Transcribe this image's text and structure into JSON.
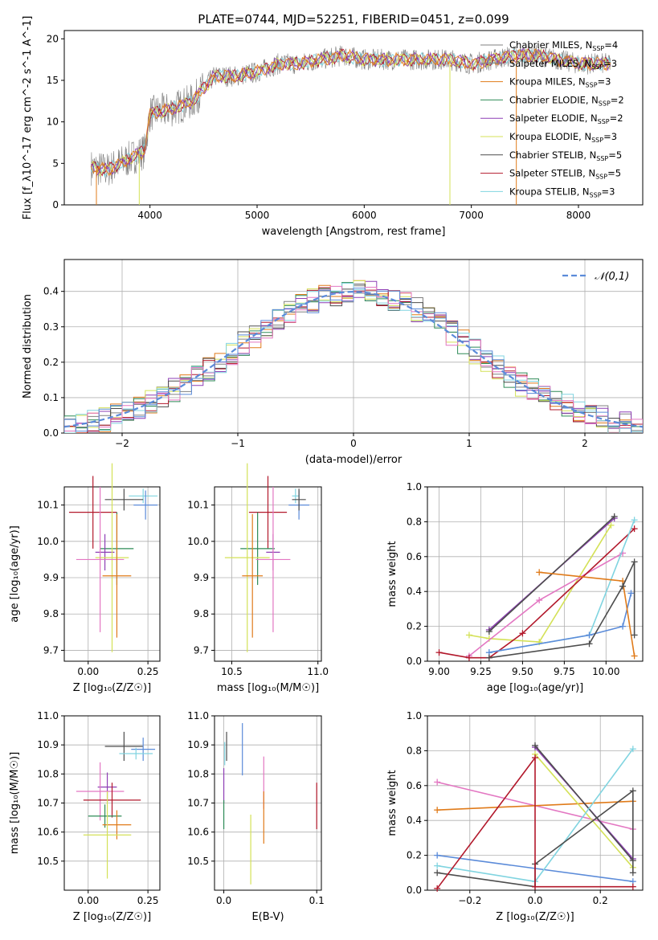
{
  "figure_title": "PLATE=0744, MJD=52251, FIBERID=0451, z=0.099",
  "models": [
    {
      "key": "chabrier_miles",
      "name": "Chabrier MILES",
      "nssp": "4",
      "color": "#808080"
    },
    {
      "key": "salpeter_miles",
      "name": "Salpeter MILES",
      "nssp": "3",
      "color": "#808080"
    },
    {
      "key": "kroupa_miles",
      "name": "Kroupa MILES",
      "nssp": "3",
      "color": "#e07b1a"
    },
    {
      "key": "chabrier_elodie",
      "name": "Chabrier ELODIE",
      "nssp": "2",
      "color": "#2e8b57"
    },
    {
      "key": "salpeter_elodie",
      "name": "Salpeter ELODIE",
      "nssp": "2",
      "color": "#8e3fb5"
    },
    {
      "key": "kroupa_elodie",
      "name": "Kroupa ELODIE",
      "nssp": "3",
      "color": "#d4e157"
    },
    {
      "key": "chabrier_stelib",
      "name": "Chabrier STELIB",
      "nssp": "5",
      "color": "#4d4d4d"
    },
    {
      "key": "salpeter_stelib",
      "name": "Salpeter STELIB",
      "nssp": "5",
      "color": "#b2182b"
    },
    {
      "key": "kroupa_stelib",
      "name": "Kroupa STELIB",
      "nssp": "3",
      "color": "#80d4e0"
    }
  ],
  "extra_colors": {
    "pink": "#e377c2",
    "blue": "#5b8bd9"
  },
  "chart_data": [
    {
      "id": "spectrum",
      "type": "line",
      "xlabel": "wavelength [Angstrom, rest frame]",
      "ylabel": "Flux [f_λ10^-17 erg cm^-2 s^-1 A^-1]",
      "xlim": [
        3200,
        8600
      ],
      "ylim": [
        0,
        21
      ],
      "xticks": [
        "4000",
        "5000",
        "6000",
        "7000",
        "8000"
      ],
      "yticks": [
        "0",
        "5",
        "10",
        "15",
        "20"
      ],
      "x_range": [
        3450,
        8300
      ],
      "continuum": [
        [
          3450,
          4.5
        ],
        [
          3600,
          4.2
        ],
        [
          3800,
          5.5
        ],
        [
          3950,
          6.5
        ],
        [
          4000,
          11
        ],
        [
          4200,
          11.5
        ],
        [
          4400,
          12.5
        ],
        [
          4600,
          15.5
        ],
        [
          4800,
          15.5
        ],
        [
          5000,
          16
        ],
        [
          5200,
          17
        ],
        [
          5400,
          17
        ],
        [
          5600,
          17.5
        ],
        [
          5800,
          18
        ],
        [
          6000,
          17.5
        ],
        [
          6200,
          17.5
        ],
        [
          6400,
          17.5
        ],
        [
          6600,
          17.5
        ],
        [
          6800,
          17.5
        ],
        [
          7000,
          17
        ],
        [
          7200,
          17.5
        ],
        [
          7400,
          18
        ],
        [
          7600,
          18
        ],
        [
          7800,
          17.5
        ],
        [
          8000,
          17
        ],
        [
          8300,
          17
        ]
      ],
      "drops": [
        [
          3500,
          0
        ],
        [
          3900,
          0
        ],
        [
          6800,
          0
        ],
        [
          7420,
          0
        ]
      ]
    },
    {
      "id": "residuals",
      "type": "histogram",
      "xlabel": "(data-model)/error",
      "ylabel": "Normed distribution",
      "xlim": [
        -2.5,
        2.5
      ],
      "ylim": [
        0,
        0.49
      ],
      "xticks": [
        "−2",
        "−1",
        "0",
        "1",
        "2"
      ],
      "yticks": [
        "0.0",
        "0.1",
        "0.2",
        "0.3",
        "0.4"
      ],
      "bin_width": 0.1,
      "legend": "𝒩(0,1)"
    },
    {
      "id": "age_vs_Z",
      "type": "scatter_errorbar",
      "xlabel": "Z [log₁₀(Z/Z☉)]",
      "ylabel": "age  [log₁₀(age/yr)]",
      "xlim": [
        -0.1,
        0.3
      ],
      "ylim": [
        9.67,
        10.15
      ],
      "xticks": [
        "0.00",
        "0.25"
      ],
      "yticks": [
        "9.7",
        "9.8",
        "9.9",
        "10.0",
        "10.1"
      ],
      "points": [
        {
          "color": "#80d4e0",
          "x": 0.23,
          "y": 10.125,
          "xerr": 0.06,
          "yerr": 0.02
        },
        {
          "color": "#5b8bd9",
          "x": 0.24,
          "y": 10.1,
          "xerr": 0.05,
          "yerr": 0.04
        },
        {
          "color": "#4d4d4d",
          "x": 0.15,
          "y": 10.115,
          "xerr": 0.08,
          "yerr": 0.03
        },
        {
          "color": "#b2182b",
          "x": 0.02,
          "y": 10.08,
          "xerr": 0.1,
          "yerr": 0.1
        },
        {
          "color": "#2e8b57",
          "x": 0.12,
          "y": 9.98,
          "xerr": 0.07,
          "yerr": 0.1
        },
        {
          "color": "#8e3fb5",
          "x": 0.07,
          "y": 9.97,
          "xerr": 0.04,
          "yerr": 0.05
        },
        {
          "color": "#d4e157",
          "x": 0.1,
          "y": 9.955,
          "xerr": 0.07,
          "yerr": 0.26
        },
        {
          "color": "#e377c2",
          "x": 0.05,
          "y": 9.95,
          "xerr": 0.1,
          "yerr": 0.2
        },
        {
          "color": "#e07b1a",
          "x": 0.12,
          "y": 9.905,
          "xerr": 0.06,
          "yerr": 0.17
        }
      ]
    },
    {
      "id": "age_vs_mass",
      "type": "scatter_errorbar",
      "xlabel": "mass [log₁₀(M/M☉)]",
      "ylabel": "",
      "xlim": [
        10.4,
        11.02
      ],
      "ylim": [
        9.67,
        10.15
      ],
      "xticks": [
        "10.5",
        "11.0"
      ],
      "yticks": [
        "9.7",
        "9.8",
        "9.9",
        "10.0",
        "10.1"
      ],
      "points": [
        {
          "color": "#80d4e0",
          "x": 10.87,
          "y": 10.125,
          "xerr": 0.02,
          "yerr": 0.02
        },
        {
          "color": "#5b8bd9",
          "x": 10.89,
          "y": 10.1,
          "xerr": 0.06,
          "yerr": 0.04
        },
        {
          "color": "#4d4d4d",
          "x": 10.89,
          "y": 10.115,
          "xerr": 0.04,
          "yerr": 0.03
        },
        {
          "color": "#b2182b",
          "x": 10.71,
          "y": 10.08,
          "xerr": 0.11,
          "yerr": 0.1
        },
        {
          "color": "#2e8b57",
          "x": 10.65,
          "y": 9.98,
          "xerr": 0.1,
          "yerr": 0.1
        },
        {
          "color": "#8e3fb5",
          "x": 10.74,
          "y": 9.97,
          "xerr": 0.04,
          "yerr": 0.05
        },
        {
          "color": "#d4e157",
          "x": 10.59,
          "y": 9.955,
          "xerr": 0.13,
          "yerr": 0.26
        },
        {
          "color": "#e377c2",
          "x": 10.74,
          "y": 9.95,
          "xerr": 0.1,
          "yerr": 0.2
        },
        {
          "color": "#e07b1a",
          "x": 10.62,
          "y": 9.905,
          "xerr": 0.06,
          "yerr": 0.17
        }
      ]
    },
    {
      "id": "weight_vs_age",
      "type": "line",
      "xlabel": "age  [log₁₀(age/yr)]",
      "ylabel": "mass weight",
      "xlim": [
        8.93,
        10.22
      ],
      "ylim": [
        0,
        1
      ],
      "xticks": [
        "9.00",
        "9.25",
        "9.50",
        "9.75",
        "10.00"
      ],
      "yticks": [
        "0.0",
        "0.2",
        "0.4",
        "0.6",
        "0.8",
        "1.0"
      ],
      "series": [
        {
          "color": "#8e3fb5",
          "x": [
            9.3,
            10.05
          ],
          "y": [
            0.18,
            0.82
          ]
        },
        {
          "color": "#4d4d4d",
          "x": [
            9.3,
            10.05
          ],
          "y": [
            0.17,
            0.83
          ]
        },
        {
          "color": "#d4e157",
          "x": [
            9.18,
            9.3,
            9.6,
            10.03
          ],
          "y": [
            0.15,
            0.13,
            0.11,
            0.78
          ]
        },
        {
          "color": "#e377c2",
          "x": [
            9.18,
            9.6,
            10.1
          ],
          "y": [
            0.03,
            0.35,
            0.62
          ]
        },
        {
          "color": "#b2182b",
          "x": [
            9.0,
            9.18,
            9.3,
            9.5,
            10.17
          ],
          "y": [
            0.05,
            0.02,
            0.02,
            0.16,
            0.76
          ]
        },
        {
          "color": "#80d4e0",
          "x": [
            9.3,
            9.9,
            10.17
          ],
          "y": [
            0.05,
            0.15,
            0.81
          ]
        },
        {
          "color": "#5b8bd9",
          "x": [
            9.3,
            9.9,
            10.1,
            10.15
          ],
          "y": [
            0.05,
            0.15,
            0.2,
            0.39
          ]
        },
        {
          "color": "#e07b1a",
          "x": [
            9.6,
            10.1,
            10.17
          ],
          "y": [
            0.51,
            0.46,
            0.03
          ]
        },
        {
          "color": "#4d4d4d",
          "x": [
            9.3,
            9.9,
            10.1,
            10.17,
            10.17
          ],
          "y": [
            0.02,
            0.1,
            0.43,
            0.57,
            0.15
          ]
        }
      ]
    },
    {
      "id": "mass_vs_Z",
      "type": "scatter_errorbar",
      "xlabel": "Z [log₁₀(Z/Z☉)]",
      "ylabel": "mass [log₁₀(M/M☉)]",
      "xlim": [
        -0.1,
        0.3
      ],
      "ylim": [
        10.4,
        11.0
      ],
      "xticks": [
        "0.00",
        "0.25"
      ],
      "yticks": [
        "10.5",
        "10.6",
        "10.7",
        "10.8",
        "10.9",
        "11.0"
      ],
      "points": [
        {
          "color": "#4d4d4d",
          "x": 0.15,
          "y": 10.895,
          "xerr": 0.08,
          "yerr": 0.05
        },
        {
          "color": "#5b8bd9",
          "x": 0.23,
          "y": 10.885,
          "xerr": 0.05,
          "yerr": 0.04
        },
        {
          "color": "#80d4e0",
          "x": 0.2,
          "y": 10.87,
          "xerr": 0.07,
          "yerr": 0.02
        },
        {
          "color": "#8e3fb5",
          "x": 0.08,
          "y": 10.755,
          "xerr": 0.04,
          "yerr": 0.05
        },
        {
          "color": "#e377c2",
          "x": 0.05,
          "y": 10.74,
          "xerr": 0.1,
          "yerr": 0.1
        },
        {
          "color": "#b2182b",
          "x": 0.1,
          "y": 10.71,
          "xerr": 0.12,
          "yerr": 0.06
        },
        {
          "color": "#2e8b57",
          "x": 0.07,
          "y": 10.655,
          "xerr": 0.07,
          "yerr": 0.04
        },
        {
          "color": "#e07b1a",
          "x": 0.12,
          "y": 10.625,
          "xerr": 0.06,
          "yerr": 0.05
        },
        {
          "color": "#d4e157",
          "x": 0.08,
          "y": 10.59,
          "xerr": 0.1,
          "yerr": 0.15
        }
      ]
    },
    {
      "id": "mass_vs_ebv",
      "type": "scatter_errorbar",
      "xlabel": "E(B-V)",
      "ylabel": "",
      "xlim": [
        -0.01,
        0.105
      ],
      "ylim": [
        10.4,
        11.0
      ],
      "xticks": [
        "0.0",
        "0.1"
      ],
      "yticks": [
        "10.5",
        "10.6",
        "10.7",
        "10.8",
        "10.9",
        "11.0"
      ],
      "points": [
        {
          "color": "#4d4d4d",
          "x": 0.003,
          "y": 10.895,
          "xerr": 0,
          "yerr": 0.05
        },
        {
          "color": "#5b8bd9",
          "x": 0.02,
          "y": 10.885,
          "xerr": 0,
          "yerr": 0.09
        },
        {
          "color": "#80d4e0",
          "x": 0.001,
          "y": 10.87,
          "xerr": 0,
          "yerr": 0.04
        },
        {
          "color": "#8e3fb5",
          "x": 0.0,
          "y": 10.76,
          "xerr": 0,
          "yerr": 0.06
        },
        {
          "color": "#2e8b57",
          "x": 0.0,
          "y": 10.66,
          "xerr": 0,
          "yerr": 0.05
        },
        {
          "color": "#e377c2",
          "x": 0.043,
          "y": 10.77,
          "xerr": 0,
          "yerr": 0.09
        },
        {
          "color": "#e07b1a",
          "x": 0.043,
          "y": 10.65,
          "xerr": 0,
          "yerr": 0.09
        },
        {
          "color": "#d4e157",
          "x": 0.029,
          "y": 10.54,
          "xerr": 0,
          "yerr": 0.12
        },
        {
          "color": "#b2182b",
          "x": 0.1,
          "y": 10.69,
          "xerr": 0,
          "yerr": 0.08
        }
      ]
    },
    {
      "id": "weight_vs_Z",
      "type": "line",
      "xlabel": "Z [log₁₀(Z/Z☉)]",
      "ylabel": "mass weight",
      "xlim": [
        -0.33,
        0.33
      ],
      "ylim": [
        0,
        1
      ],
      "xticks": [
        "−0.2",
        "0.0",
        "0.2"
      ],
      "yticks": [
        "0.0",
        "0.2",
        "0.4",
        "0.6",
        "0.8",
        "1.0"
      ],
      "series": [
        {
          "color": "#e377c2",
          "x": [
            -0.3,
            0.3
          ],
          "y": [
            0.62,
            0.35
          ]
        },
        {
          "color": "#e07b1a",
          "x": [
            -0.3,
            0.3
          ],
          "y": [
            0.46,
            0.51
          ]
        },
        {
          "color": "#5b8bd9",
          "x": [
            -0.3,
            0.3
          ],
          "y": [
            0.2,
            0.05
          ]
        },
        {
          "color": "#8e3fb5",
          "x": [
            0.0,
            0.3
          ],
          "y": [
            0.82,
            0.18
          ]
        },
        {
          "color": "#4d4d4d",
          "x": [
            0.0,
            0.3
          ],
          "y": [
            0.83,
            0.17
          ]
        },
        {
          "color": "#d4e157",
          "x": [
            0.0,
            0.3
          ],
          "y": [
            0.78,
            0.13
          ]
        },
        {
          "color": "#80d4e0",
          "x": [
            -0.3,
            0.0,
            0.3
          ],
          "y": [
            0.14,
            0.05,
            0.81
          ]
        },
        {
          "color": "#4d4d4d",
          "x": [
            -0.3,
            0.0,
            0.0,
            0.3,
            0.3
          ],
          "y": [
            0.1,
            0.02,
            0.15,
            0.57,
            0.1
          ]
        },
        {
          "color": "#b2182b",
          "x": [
            -0.3,
            0.0,
            0.0,
            0.3
          ],
          "y": [
            0.01,
            0.76,
            0.02,
            0.02
          ]
        }
      ]
    }
  ]
}
